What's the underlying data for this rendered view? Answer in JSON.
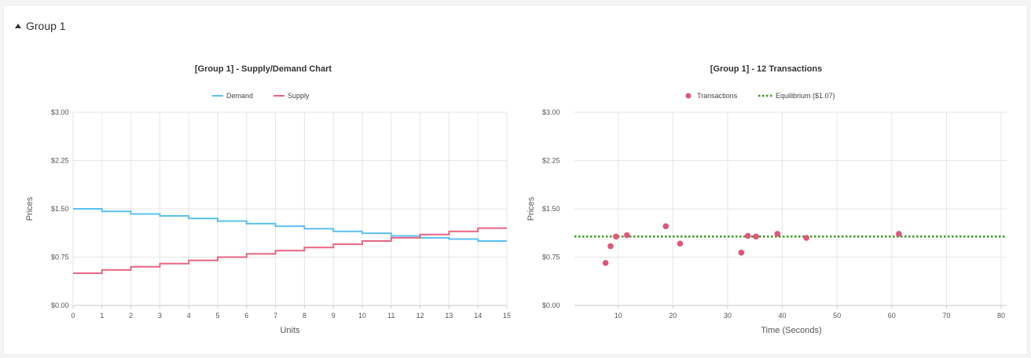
{
  "group": {
    "label": "Group 1",
    "icon": "caret-up-icon"
  },
  "charts": {
    "supply_demand": {
      "title": "[Group 1] - Supply/Demand Chart",
      "legend": {
        "demand": "Demand",
        "supply": "Supply"
      },
      "xlabel": "Units",
      "ylabel": "Prices",
      "yticks": [
        "$0.00",
        "$0.75",
        "$1.50",
        "$2.25",
        "$3.00"
      ],
      "xticks": [
        "0",
        "1",
        "2",
        "3",
        "4",
        "5",
        "6",
        "7",
        "8",
        "9",
        "10",
        "11",
        "12",
        "13",
        "14",
        "15"
      ]
    },
    "transactions": {
      "title": "[Group 1] - 12 Transactions",
      "legend": {
        "transactions": "Transactions",
        "equilibrium": "Equilibrium ($1.07)"
      },
      "xlabel": "Time (Seconds)",
      "ylabel": "Prices",
      "yticks": [
        "$0.00",
        "$0.75",
        "$1.50",
        "$2.25",
        "$3.00"
      ],
      "xticks": [
        "10",
        "20",
        "30",
        "40",
        "50",
        "60",
        "70",
        "80"
      ]
    }
  },
  "chart_data": [
    {
      "type": "line",
      "step": true,
      "title": "[Group 1] - Supply/Demand Chart",
      "xlabel": "Units",
      "ylabel": "Prices",
      "xlim": [
        0,
        15
      ],
      "ylim": [
        0,
        3
      ],
      "grid": true,
      "legend_position": "top-center",
      "x": [
        0,
        1,
        2,
        3,
        4,
        5,
        6,
        7,
        8,
        9,
        10,
        11,
        12,
        13,
        14,
        15
      ],
      "series": [
        {
          "name": "Demand",
          "color": "#5bc0f0",
          "values": [
            1.5,
            1.46,
            1.42,
            1.39,
            1.35,
            1.31,
            1.27,
            1.23,
            1.19,
            1.15,
            1.12,
            1.08,
            1.05,
            1.03,
            1.0,
            1.0
          ]
        },
        {
          "name": "Supply",
          "color": "#e86584",
          "values": [
            0.5,
            0.55,
            0.6,
            0.65,
            0.7,
            0.75,
            0.8,
            0.85,
            0.9,
            0.95,
            1.0,
            1.05,
            1.1,
            1.15,
            1.2,
            1.2
          ]
        }
      ]
    },
    {
      "type": "scatter",
      "title": "[Group 1] - 12 Transactions",
      "xlabel": "Time (Seconds)",
      "ylabel": "Prices",
      "xlim": [
        2,
        81
      ],
      "ylim": [
        0,
        3
      ],
      "grid": true,
      "legend_position": "top-center",
      "series": [
        {
          "name": "Transactions",
          "color": "#e0557a",
          "points": [
            {
              "x": 7.7,
              "y": 0.66
            },
            {
              "x": 8.6,
              "y": 0.92
            },
            {
              "x": 9.6,
              "y": 1.07
            },
            {
              "x": 11.6,
              "y": 1.09
            },
            {
              "x": 18.7,
              "y": 1.23
            },
            {
              "x": 21.3,
              "y": 0.96
            },
            {
              "x": 32.5,
              "y": 0.82
            },
            {
              "x": 33.7,
              "y": 1.08
            },
            {
              "x": 35.2,
              "y": 1.07
            },
            {
              "x": 39.1,
              "y": 1.11
            },
            {
              "x": 44.4,
              "y": 1.05
            },
            {
              "x": 61.3,
              "y": 1.11
            }
          ]
        },
        {
          "name": "Equilibrium ($1.07)",
          "color": "#3a9a23",
          "value": 1.07
        }
      ]
    }
  ]
}
